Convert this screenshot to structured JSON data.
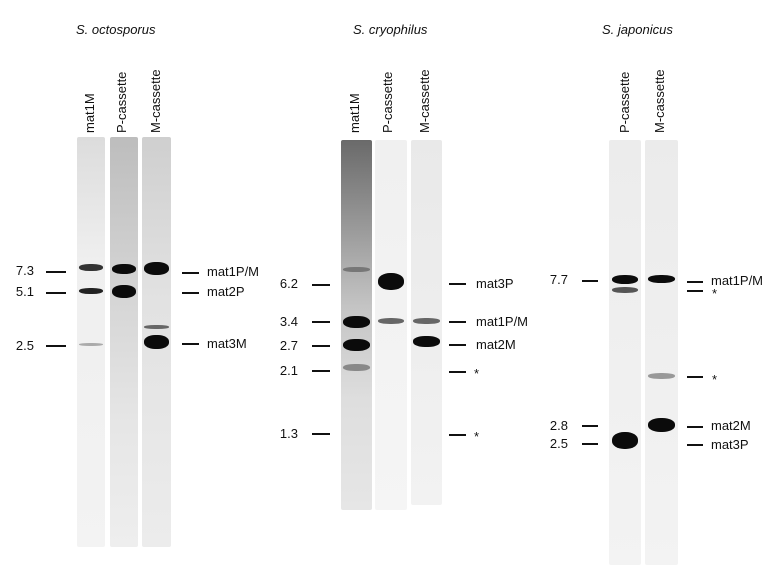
{
  "panels": [
    {
      "species": "S. octosporus",
      "lanes": [
        "mat1M",
        "P-cassette",
        "M-cassette"
      ],
      "size_markers": [
        "7.3",
        "5.1",
        "2.5"
      ],
      "band_labels": [
        "mat1P/M",
        "mat2P",
        "mat3M"
      ]
    },
    {
      "species": "S. cryophilus",
      "lanes": [
        "mat1M",
        "P-cassette",
        "M-cassette"
      ],
      "size_markers": [
        "6.2",
        "3.4",
        "2.7",
        "2.1",
        "1.3"
      ],
      "band_labels": [
        "mat3P",
        "mat1P/M",
        "mat2M",
        "*",
        "*"
      ]
    },
    {
      "species": "S. japonicus",
      "lanes": [
        "P-cassette",
        "M-cassette"
      ],
      "size_markers": [
        "7.7",
        "2.8",
        "2.5"
      ],
      "band_labels": [
        "mat1P/M",
        "*",
        "*",
        "mat2M",
        "mat3P"
      ]
    }
  ]
}
